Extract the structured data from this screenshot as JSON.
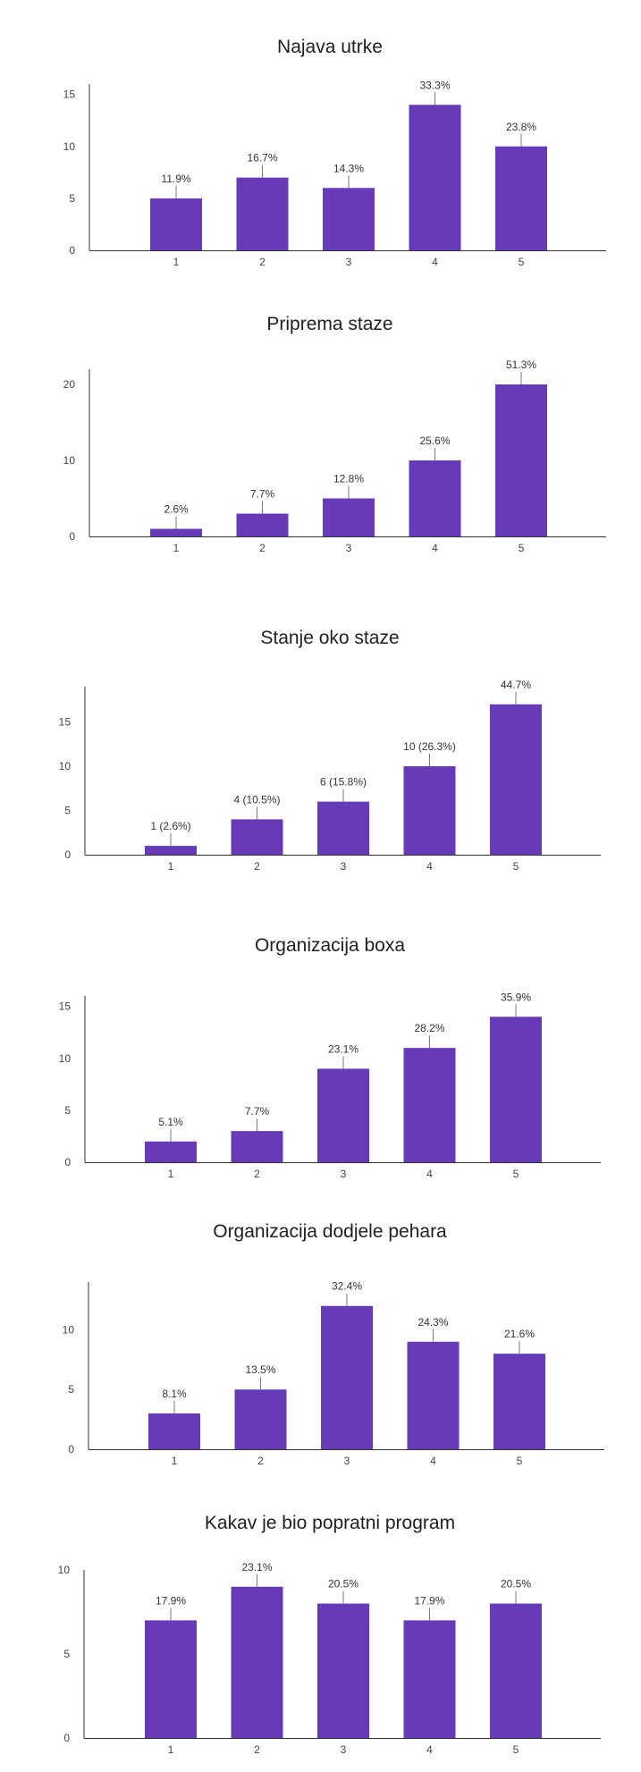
{
  "colors": {
    "bar": "#673ab7",
    "axis": "#333333",
    "leader": "#7a7a7a",
    "text": "#212121"
  },
  "chart_data": [
    {
      "type": "bar",
      "title": "Najava utrke",
      "categories": [
        "1",
        "2",
        "3",
        "4",
        "5"
      ],
      "values": [
        5,
        7,
        6,
        14,
        10
      ],
      "labels": [
        "11.9%",
        "16.7%",
        "14.3%",
        "33.3%",
        "23.8%"
      ],
      "yticks": [
        0,
        5,
        10,
        15
      ],
      "ylim": [
        0,
        16
      ],
      "grid": false
    },
    {
      "type": "bar",
      "title": "Priprema staze",
      "categories": [
        "1",
        "2",
        "3",
        "4",
        "5"
      ],
      "values": [
        1,
        3,
        5,
        10,
        20
      ],
      "labels": [
        "2.6%",
        "7.7%",
        "12.8%",
        "25.6%",
        "51.3%"
      ],
      "yticks": [
        0,
        10,
        20
      ],
      "ylim": [
        0,
        22
      ],
      "grid": false
    },
    {
      "type": "bar",
      "title": "Stanje oko staze",
      "categories": [
        "1",
        "2",
        "3",
        "4",
        "5"
      ],
      "values": [
        1,
        4,
        6,
        10,
        17
      ],
      "labels": [
        "1 (2.6%)",
        "4 (10.5%)",
        "6 (15.8%)",
        "10 (26.3%)",
        "44.7%"
      ],
      "yticks": [
        0,
        5,
        10,
        15
      ],
      "ylim": [
        0,
        19
      ],
      "grid": false
    },
    {
      "type": "bar",
      "title": "Organizacija boxa",
      "categories": [
        "1",
        "2",
        "3",
        "4",
        "5"
      ],
      "values": [
        2,
        3,
        9,
        11,
        14
      ],
      "labels": [
        "5.1%",
        "7.7%",
        "23.1%",
        "28.2%",
        "35.9%"
      ],
      "yticks": [
        0,
        5,
        10,
        15
      ],
      "ylim": [
        0,
        16
      ],
      "grid": false
    },
    {
      "type": "bar",
      "title": "Organizacija dodjele pehara",
      "categories": [
        "1",
        "2",
        "3",
        "4",
        "5"
      ],
      "values": [
        3,
        5,
        12,
        9,
        8
      ],
      "labels": [
        "8.1%",
        "13.5%",
        "32.4%",
        "24.3%",
        "21.6%"
      ],
      "yticks": [
        0,
        5,
        10
      ],
      "ylim": [
        0,
        14
      ],
      "grid": false
    },
    {
      "type": "bar",
      "title": "Kakav je bio popratni program",
      "categories": [
        "1",
        "2",
        "3",
        "4",
        "5"
      ],
      "values": [
        7,
        9,
        8,
        7,
        8
      ],
      "labels": [
        "17.9%",
        "23.1%",
        "20.5%",
        "17.9%",
        "20.5%"
      ],
      "yticks": [
        0,
        5,
        10
      ],
      "ylim": [
        0,
        10
      ],
      "grid": false
    }
  ]
}
